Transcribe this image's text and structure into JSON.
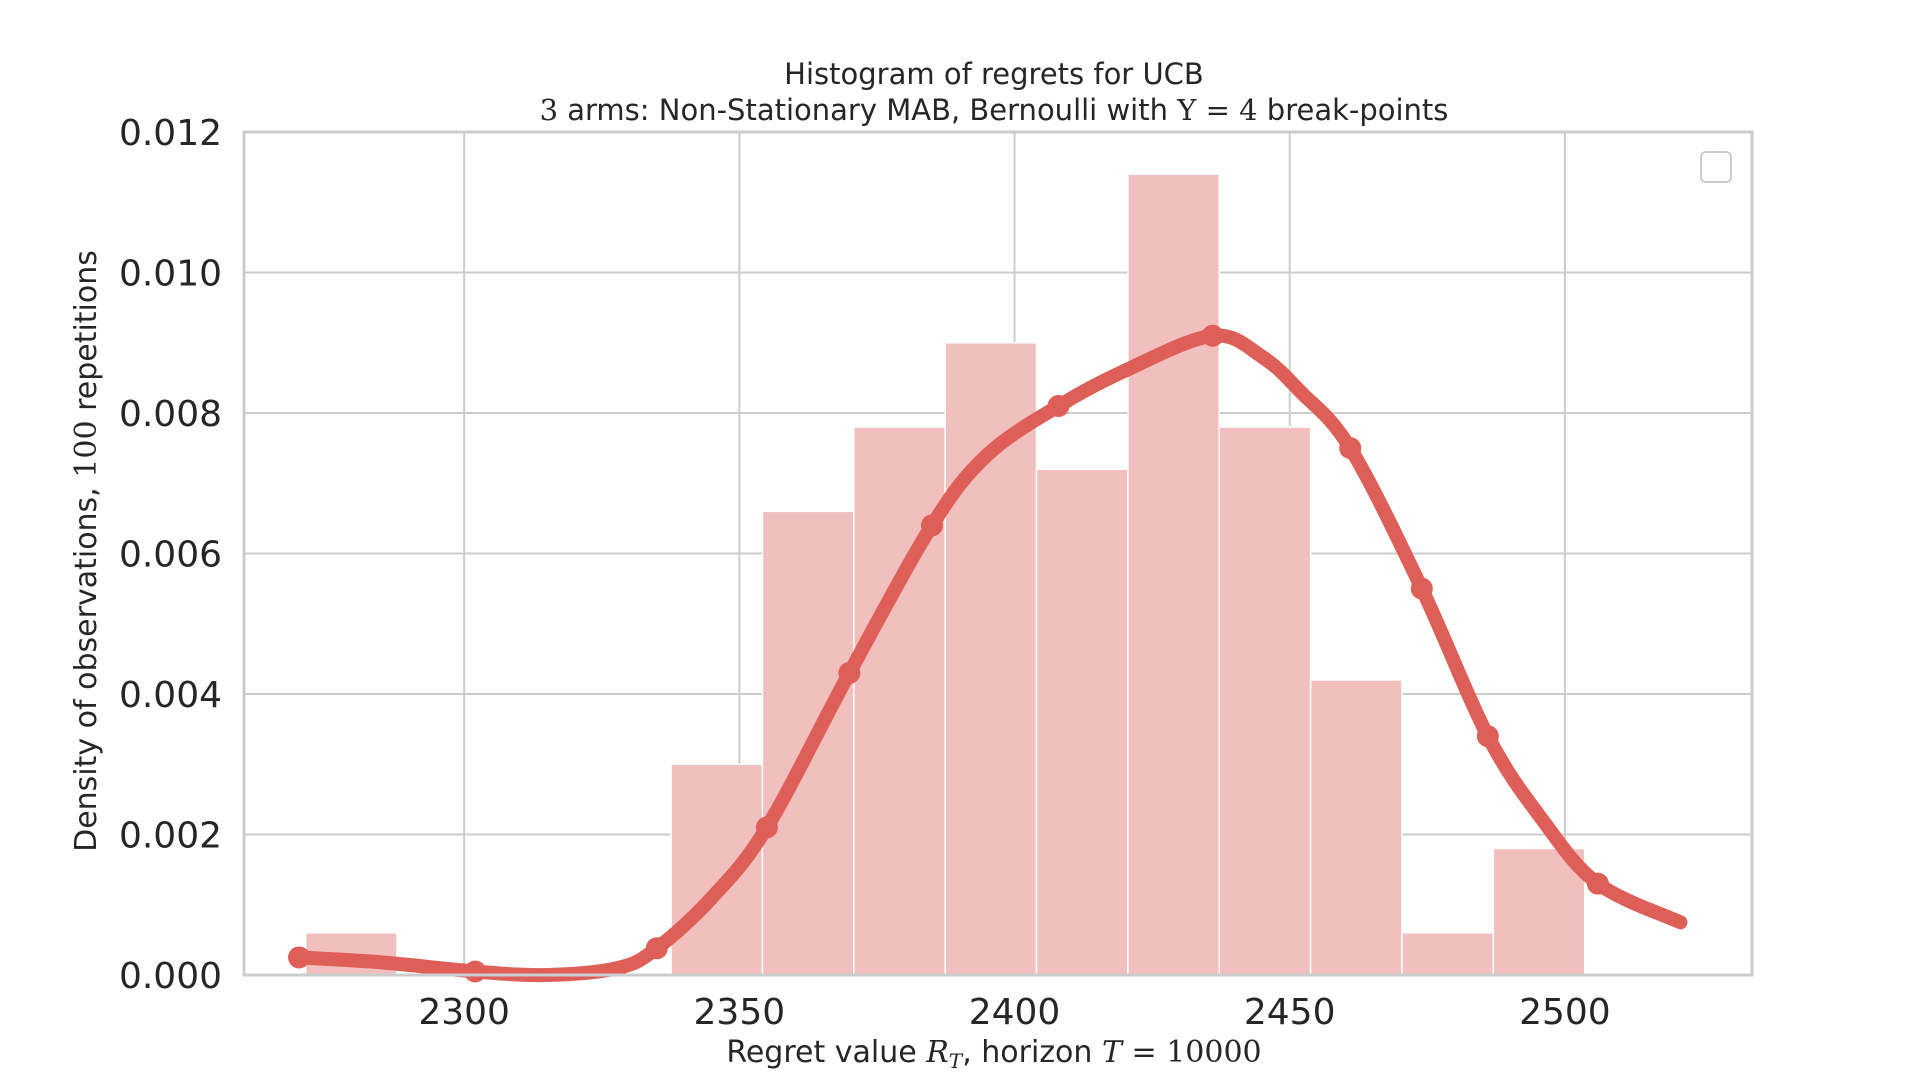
{
  "chart_data": {
    "type": "bar",
    "title_line1": "Histogram of regrets for UCB",
    "title_line2_parts": {
      "n_arms": "3",
      "text1": " arms: Non-Stationary MAB, Bernoulli with ",
      "upsilon": "Υ",
      "eq": " = ",
      "breakpoints": "4",
      "text2": " break-points"
    },
    "xlabel_parts": {
      "text1": "Regret value ",
      "r_symbol": "R",
      "r_sub": "T",
      "text2": ", horizon ",
      "t_symbol": "T",
      "eq": " = ",
      "horizon": "10000"
    },
    "ylabel_parts": {
      "text1": "Density of observations, ",
      "repetitions": "100",
      "text2": " repetitions"
    },
    "xlim": [
      2260,
      2534
    ],
    "ylim": [
      0,
      0.012
    ],
    "x_ticks": [
      2300,
      2350,
      2400,
      2450,
      2500
    ],
    "x_tick_labels": [
      "2300",
      "2350",
      "2400",
      "2450",
      "2500"
    ],
    "y_ticks": [
      0,
      0.002,
      0.004,
      0.006,
      0.008,
      0.01,
      0.012
    ],
    "y_tick_labels": [
      "0.000",
      "0.002",
      "0.004",
      "0.006",
      "0.008",
      "0.010",
      "0.012"
    ],
    "grid": true,
    "legend": "top-right (empty)",
    "bar_color": "#f0bfbe",
    "kde_color": "#dd5f57",
    "histogram": {
      "bin_edges": [
        2271.2,
        2287.8,
        2304.4,
        2321.0,
        2337.6,
        2354.2,
        2370.8,
        2387.4,
        2404.0,
        2420.6,
        2437.2,
        2453.8,
        2470.4,
        2487.0,
        2503.6,
        2520.2
      ],
      "densities": [
        0.0006,
        0,
        0,
        0,
        0.003,
        0.0066,
        0.0078,
        0.009,
        0.0072,
        0.0114,
        0.0078,
        0.0042,
        0.0006,
        0.0018,
        0
      ]
    },
    "kde": {
      "x": [
        2270,
        2285,
        2302,
        2315,
        2328,
        2335,
        2345,
        2355,
        2370,
        2385,
        2395,
        2408,
        2420,
        2436,
        2445,
        2452,
        2461,
        2474,
        2486,
        2496,
        2506,
        2521
      ],
      "y": [
        0.00025,
        0.00018,
        5e-05,
        0.0,
        0.0001,
        0.00038,
        0.0011,
        0.0021,
        0.0043,
        0.0064,
        0.0074,
        0.0081,
        0.0086,
        0.0091,
        0.0088,
        0.0083,
        0.0075,
        0.0055,
        0.0034,
        0.0022,
        0.0013,
        0.00075
      ]
    },
    "kde_markers_x": [
      2270,
      2302,
      2335,
      2355,
      2370,
      2385,
      2408,
      2436,
      2461,
      2474,
      2486,
      2506
    ]
  }
}
